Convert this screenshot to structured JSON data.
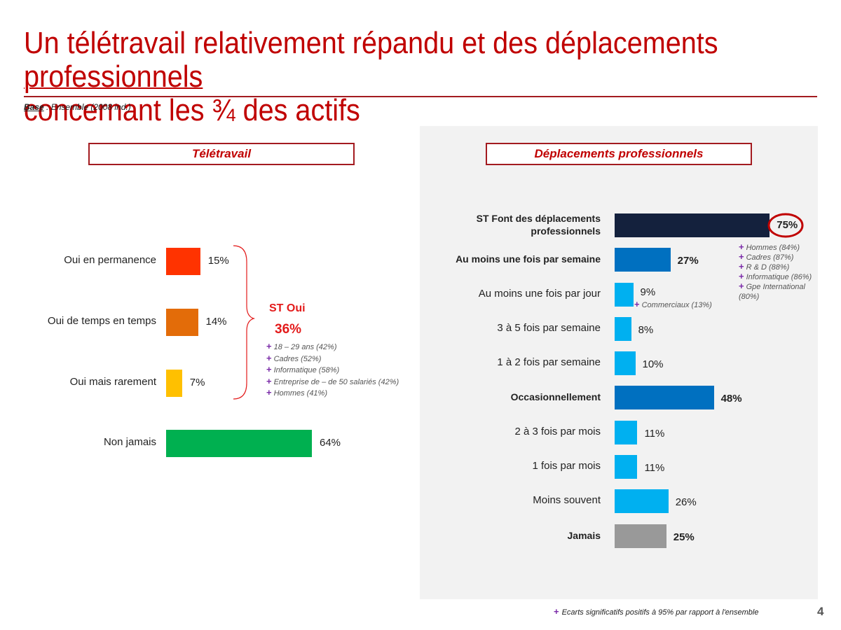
{
  "title": {
    "part1": "Un télétravail relativement répandu et des déplacements ",
    "underlined": "professionnels",
    "part2": "concernant les ¾ des actifs"
  },
  "base": {
    "label": "Base",
    "text": " : Ensemble (2008 ind.)"
  },
  "chart_data": [
    {
      "type": "bar",
      "orientation": "horizontal",
      "title": "Télétravail",
      "categories": [
        "Oui en permanence",
        "Oui de temps en temps",
        "Oui mais rarement",
        "Non jamais"
      ],
      "values": [
        15,
        14,
        7,
        64
      ],
      "labels": [
        "15%",
        "14%",
        "7%",
        "64%"
      ],
      "colors": [
        "#ff3300",
        "#e36c09",
        "#ffc000",
        "#00b050"
      ],
      "group": {
        "label": "ST Oui",
        "value": 36,
        "value_label": "36%",
        "notes": [
          "18 – 29 ans (42%)",
          "Cadres (52%)",
          "Informatique (58%)",
          "Entreprise de – de 50 salariés (42%)",
          "Hommes (41%)"
        ]
      }
    },
    {
      "type": "bar",
      "orientation": "horizontal",
      "title": "Déplacements professionnels",
      "categories": [
        "ST Font des déplacements professionnels",
        "Au moins une fois par semaine",
        "Au moins une fois par jour",
        "3 à 5 fois par semaine",
        "1 à 2 fois par semaine",
        "Occasionnellement",
        "2 à 3 fois par mois",
        "1 fois par mois",
        "Moins souvent",
        "Jamais"
      ],
      "values": [
        75,
        27,
        9,
        8,
        10,
        48,
        11,
        11,
        26,
        25
      ],
      "labels": [
        "75%",
        "27%",
        "9%",
        "8%",
        "10%",
        "48%",
        "11%",
        "11%",
        "26%",
        "25%"
      ],
      "colors": [
        "#14213d",
        "#0070c0",
        "#00b0f0",
        "#00b0f0",
        "#00b0f0",
        "#0070c0",
        "#00b0f0",
        "#00b0f0",
        "#00b0f0",
        "#999999"
      ],
      "bold": [
        true,
        true,
        false,
        false,
        false,
        true,
        false,
        false,
        false,
        true
      ],
      "highlighted": "75%",
      "notes_st": [
        "Hommes (84%)",
        "Cadres (87%)",
        "R & D (88%)",
        "Informatique (86%)",
        "Gpe International (80%)"
      ],
      "notes_jour": [
        "Commerciaux (13%)"
      ]
    }
  ],
  "footer": "Ecarts significatifs positifs à 95% par rapport à l'ensemble",
  "page_number": "4"
}
